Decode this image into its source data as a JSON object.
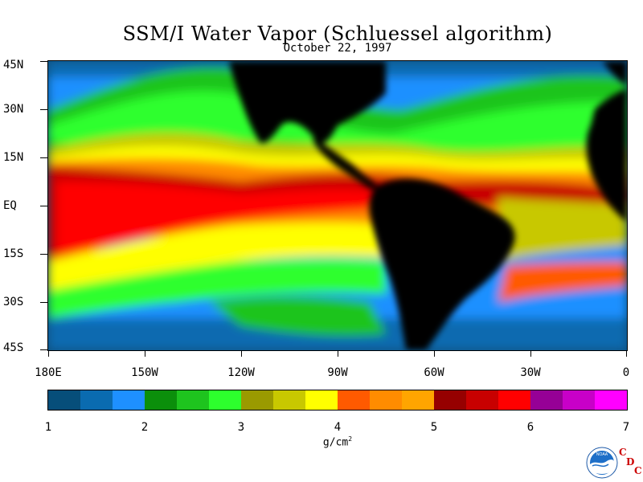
{
  "title": "SSM/I Water Vapor (Schluessel algorithm)",
  "date": "October 22, 1997",
  "lat_labels": [
    "45N",
    "30N",
    "15N",
    "EQ",
    "15S",
    "30S",
    "45S"
  ],
  "lon_labels": [
    "180E",
    "150W",
    "120W",
    "90W",
    "60W",
    "30W",
    "0"
  ],
  "colorbar": {
    "labels": [
      "1",
      "2",
      "3",
      "4",
      "5",
      "6",
      "7"
    ],
    "unit": "g/cm",
    "unit_exp": "2",
    "colors": [
      "#064e7a",
      "#0a6bb0",
      "#1e90ff",
      "#0b8f0b",
      "#1ec41e",
      "#2dff2d",
      "#9a9a00",
      "#c8c800",
      "#ffff00",
      "#ff5a00",
      "#ff8c00",
      "#ffa500",
      "#960000",
      "#c80000",
      "#ff0000",
      "#960096",
      "#c800c8",
      "#ff00ff"
    ]
  },
  "logo": {
    "text": "NOAA",
    "letters": [
      "C",
      "D",
      "C"
    ]
  }
}
